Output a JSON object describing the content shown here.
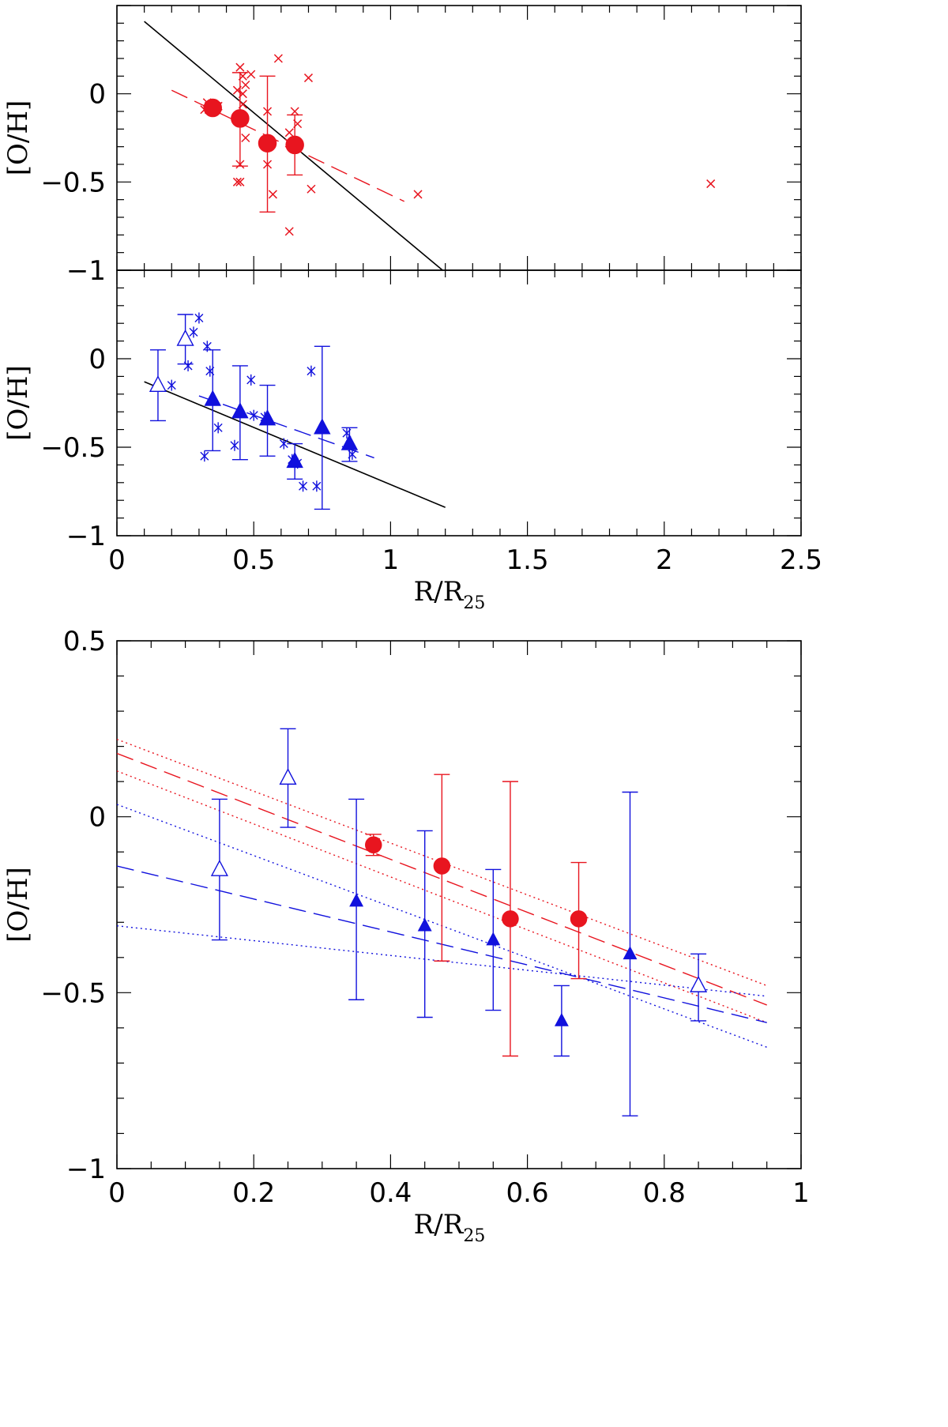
{
  "chart_data": [
    {
      "type": "scatter",
      "ylabel": "[O/H]",
      "xlim": [
        0,
        2.5
      ],
      "ylim": [
        -1,
        0.5
      ],
      "colors": {
        "red": "#e8151f",
        "black": "#000000"
      },
      "series": [
        {
          "marker": "cross",
          "color": "red",
          "x": [
            0.32,
            0.44,
            0.45,
            0.46,
            0.47,
            0.49,
            0.46,
            0.46,
            0.47,
            0.45,
            0.45,
            0.44,
            0.55,
            0.55,
            0.59,
            0.57,
            0.63,
            0.65,
            0.66,
            0.66,
            0.63,
            0.63,
            0.7,
            0.71,
            1.1,
            2.17,
            0.33,
            0.37
          ],
          "y": [
            -0.09,
            0.02,
            0.15,
            0.1,
            0.05,
            0.11,
            0.0,
            -0.06,
            -0.25,
            -0.4,
            -0.5,
            -0.5,
            -0.1,
            -0.4,
            0.2,
            -0.57,
            -0.28,
            -0.1,
            -0.17,
            -0.31,
            -0.78,
            -0.22,
            0.09,
            -0.54,
            -0.57,
            -0.51,
            -0.05,
            -0.07
          ]
        },
        {
          "marker": "filled-circle",
          "color": "red",
          "x": [
            0.35,
            0.45,
            0.55,
            0.65
          ],
          "y": [
            -0.08,
            -0.14,
            -0.28,
            -0.29
          ],
          "err_lo": [
            0.03,
            0.27,
            0.39,
            0.17
          ],
          "err_hi": [
            0.03,
            0.26,
            0.38,
            0.17
          ]
        }
      ],
      "lines": [
        {
          "style": "solid",
          "color": "black",
          "x": [
            0.1,
            1.19
          ],
          "y": [
            0.41,
            -1.0
          ]
        },
        {
          "style": "dashed",
          "color": "red",
          "x": [
            0.2,
            1.05
          ],
          "y": [
            0.02,
            -0.61
          ]
        }
      ]
    },
    {
      "type": "scatter",
      "ylabel": "[O/H]",
      "xlabel": "R/R",
      "xlabel_sub": "25",
      "xlim": [
        0,
        2.5
      ],
      "ylim": [
        -1,
        0.5
      ],
      "xticks": [
        "0",
        "0.5",
        "1",
        "1.5",
        "2",
        "2.5"
      ],
      "colors": {
        "blue": "#1111dd",
        "black": "#000000"
      },
      "series": [
        {
          "marker": "asterisk",
          "color": "blue",
          "x": [
            0.2,
            0.26,
            0.28,
            0.3,
            0.33,
            0.34,
            0.37,
            0.43,
            0.49,
            0.5,
            0.61,
            0.64,
            0.66,
            0.68,
            0.71,
            0.73,
            0.84,
            0.86,
            0.32,
            0.54
          ],
          "y": [
            -0.15,
            -0.04,
            0.15,
            0.23,
            0.07,
            -0.07,
            -0.39,
            -0.49,
            -0.12,
            -0.32,
            -0.48,
            -0.57,
            -0.59,
            -0.72,
            -0.07,
            -0.72,
            -0.42,
            -0.54,
            -0.55,
            -0.33
          ]
        },
        {
          "marker": "open-triangle",
          "color": "blue",
          "x": [
            0.15,
            0.25
          ],
          "y": [
            -0.15,
            0.11
          ],
          "err_lo": [
            0.2,
            0.14
          ],
          "err_hi": [
            0.2,
            0.14
          ]
        },
        {
          "marker": "filled-triangle",
          "color": "blue",
          "x": [
            0.35,
            0.45,
            0.55,
            0.65,
            0.75,
            0.85
          ],
          "y": [
            -0.23,
            -0.3,
            -0.34,
            -0.58,
            -0.39,
            -0.48
          ],
          "err_lo": [
            0.29,
            0.27,
            0.21,
            0.1,
            0.46,
            0.1
          ],
          "err_hi": [
            0.28,
            0.26,
            0.19,
            0.1,
            0.46,
            0.09
          ]
        }
      ],
      "lines": [
        {
          "style": "solid",
          "color": "black",
          "x": [
            0.1,
            1.2
          ],
          "y": [
            -0.13,
            -0.84
          ]
        },
        {
          "style": "dashed",
          "color": "blue",
          "x": [
            0.3,
            0.94
          ],
          "y": [
            -0.21,
            -0.56
          ]
        }
      ]
    },
    {
      "type": "scatter",
      "ylabel": "[O/H]",
      "xlabel": "R/R",
      "xlabel_sub": "25",
      "xlim": [
        0,
        1
      ],
      "ylim": [
        -1,
        0.5
      ],
      "xticks": [
        "0",
        "0.2",
        "0.4",
        "0.6",
        "0.8",
        "1"
      ],
      "yticks": [
        "0.5",
        "0",
        "−0.5",
        "−1"
      ],
      "colors": {
        "red": "#e8151f",
        "blue": "#1111dd"
      },
      "series": [
        {
          "marker": "filled-circle",
          "color": "red",
          "x": [
            0.375,
            0.475,
            0.575,
            0.675
          ],
          "y": [
            -0.08,
            -0.14,
            -0.29,
            -0.29
          ],
          "err_lo": [
            0.03,
            0.27,
            0.39,
            0.17
          ],
          "err_hi": [
            0.03,
            0.26,
            0.39,
            0.16
          ]
        },
        {
          "marker": "open-triangle",
          "color": "blue",
          "x": [
            0.15,
            0.25,
            0.85
          ],
          "y": [
            -0.15,
            0.11,
            -0.48
          ],
          "err_lo": [
            0.2,
            0.14,
            0.1
          ],
          "err_hi": [
            0.2,
            0.14,
            0.09
          ]
        },
        {
          "marker": "filled-triangle",
          "color": "blue",
          "x": [
            0.35,
            0.45,
            0.55,
            0.65,
            0.75
          ],
          "y": [
            -0.24,
            -0.31,
            -0.35,
            -0.58,
            -0.39
          ],
          "err_lo": [
            0.28,
            0.26,
            0.2,
            0.1,
            0.46
          ],
          "err_hi": [
            0.29,
            0.27,
            0.2,
            0.1,
            0.46
          ]
        }
      ],
      "lines": [
        {
          "style": "dashed",
          "color": "red",
          "x": [
            0.0,
            0.95
          ],
          "y": [
            0.18,
            -0.535
          ]
        },
        {
          "style": "dotted",
          "color": "red",
          "x": [
            0.0,
            0.95
          ],
          "y": [
            0.22,
            -0.48
          ]
        },
        {
          "style": "dotted",
          "color": "red",
          "x": [
            0.0,
            0.95
          ],
          "y": [
            0.13,
            -0.585
          ]
        },
        {
          "style": "dashed",
          "color": "blue",
          "x": [
            0.0,
            0.95
          ],
          "y": [
            -0.14,
            -0.585
          ]
        },
        {
          "style": "dotted",
          "color": "blue",
          "x": [
            0.0,
            0.95
          ],
          "y": [
            0.035,
            -0.655
          ]
        },
        {
          "style": "dotted",
          "color": "blue",
          "x": [
            0.0,
            0.95
          ],
          "y": [
            -0.31,
            -0.51
          ]
        }
      ]
    }
  ],
  "axes": {
    "top_yticks": [
      "0",
      "−0.5",
      "−1"
    ],
    "mid_yticks": [
      "0",
      "−0.5",
      "−1"
    ]
  }
}
